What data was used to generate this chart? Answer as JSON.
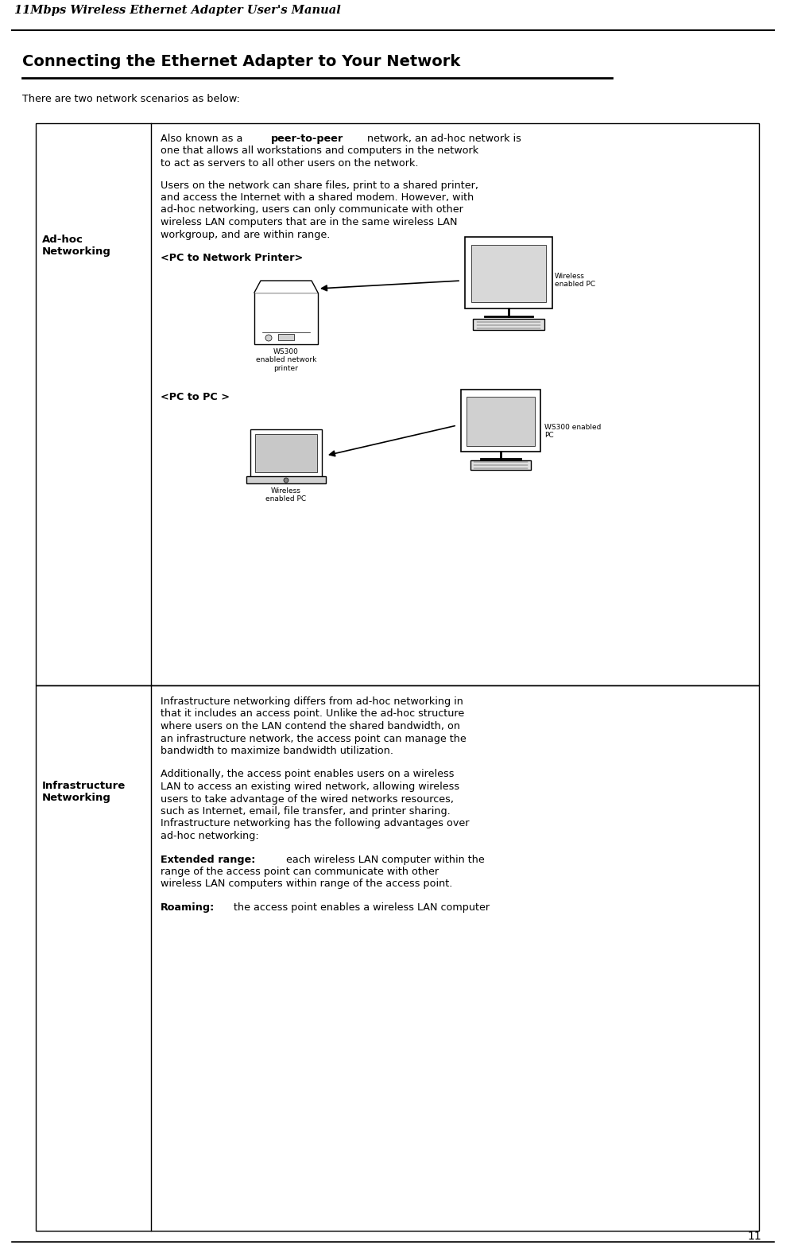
{
  "header_text": "11Mbps Wireless Ethernet Adapter User's Manual",
  "page_number": "11",
  "title": "Connecting the Ethernet Adapter to Your Network",
  "intro_text": "There are two network scenarios as below:",
  "row1_label": "Ad-hoc\nNetworking",
  "row1_label_pc_printer": "<PC to Network Printer>",
  "row1_label_pc_pc": "<PC to PC >",
  "row2_label": "Infrastructure\nNetworking",
  "bg_color": "#ffffff",
  "text_color": "#000000",
  "header_font_size": 10.5,
  "title_font_size": 14,
  "body_font_size": 9.2,
  "label_font_size": 9.5
}
